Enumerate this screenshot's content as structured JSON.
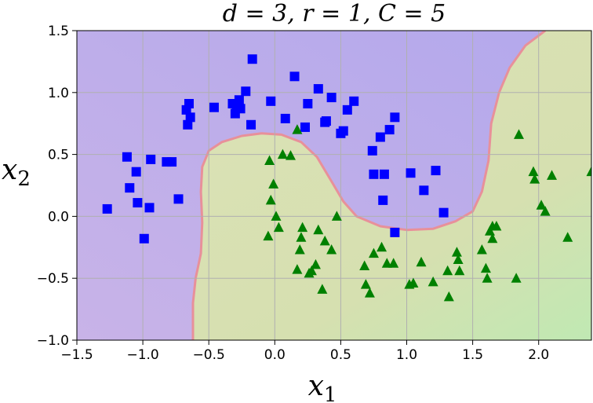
{
  "chart_data": {
    "type": "scatter",
    "title": "d = 3, r = 1, C = 5",
    "xlabel": "x",
    "xlabel_sub": "1",
    "ylabel": "x",
    "ylabel_sub": "2",
    "xlim": [
      -1.5,
      2.4
    ],
    "ylim": [
      -1.0,
      1.5
    ],
    "xticks": [
      "−1.5",
      "−1.0",
      "−0.5",
      "0.0",
      "0.5",
      "1.0",
      "1.5",
      "2.0"
    ],
    "yticks": [
      "−1.0",
      "−0.5",
      "0.0",
      "0.5",
      "1.0",
      "1.5"
    ],
    "grid": true,
    "colors": {
      "class0": "#0000ff",
      "class1": "#008000",
      "region0": "#c8b3e8",
      "region1": "#d6e0b0",
      "boundary": "#e8909a"
    },
    "decision_boundary": [
      [
        -0.62,
        -1.0
      ],
      [
        -0.62,
        -0.7
      ],
      [
        -0.6,
        -0.5
      ],
      [
        -0.56,
        -0.3
      ],
      [
        -0.55,
        -0.05
      ],
      [
        -0.56,
        0.2
      ],
      [
        -0.55,
        0.4
      ],
      [
        -0.5,
        0.53
      ],
      [
        -0.4,
        0.6
      ],
      [
        -0.25,
        0.65
      ],
      [
        -0.1,
        0.67
      ],
      [
        0.05,
        0.66
      ],
      [
        0.2,
        0.6
      ],
      [
        0.32,
        0.48
      ],
      [
        0.42,
        0.3
      ],
      [
        0.52,
        0.12
      ],
      [
        0.62,
        0.0
      ],
      [
        0.8,
        -0.08
      ],
      [
        1.0,
        -0.11
      ],
      [
        1.2,
        -0.1
      ],
      [
        1.37,
        -0.04
      ],
      [
        1.5,
        0.04
      ],
      [
        1.57,
        0.2
      ],
      [
        1.62,
        0.45
      ],
      [
        1.64,
        0.75
      ],
      [
        1.7,
        1.0
      ],
      [
        1.78,
        1.2
      ],
      [
        1.9,
        1.38
      ],
      [
        2.05,
        1.5
      ]
    ],
    "series": [
      {
        "marker": "square",
        "x": [
          -1.27,
          -1.12,
          -1.1,
          -1.05,
          -1.04,
          -0.99,
          -0.95,
          -0.94,
          -0.82,
          -0.78,
          -0.73,
          -0.67,
          -0.66,
          -0.65,
          -0.64,
          -0.46,
          -0.32,
          -0.3,
          -0.29,
          -0.27,
          -0.26,
          -0.22,
          -0.18,
          -0.17,
          -0.03,
          0.08,
          0.15,
          0.23,
          0.25,
          0.33,
          0.38,
          0.39,
          0.43,
          0.5,
          0.52,
          0.55,
          0.6,
          0.74,
          0.75,
          0.8,
          0.82,
          0.83,
          0.87,
          0.91,
          1.03,
          1.13,
          1.22,
          1.28,
          0.91
        ],
        "y": [
          0.06,
          0.48,
          0.23,
          0.36,
          0.11,
          -0.18,
          0.07,
          0.46,
          0.44,
          0.44,
          0.14,
          0.86,
          0.74,
          0.91,
          0.8,
          0.88,
          0.91,
          0.83,
          0.88,
          0.94,
          0.87,
          1.01,
          0.74,
          1.27,
          0.93,
          0.79,
          1.13,
          0.72,
          0.91,
          1.03,
          0.76,
          0.77,
          0.96,
          0.67,
          0.69,
          0.86,
          0.93,
          0.53,
          0.34,
          0.64,
          0.13,
          0.34,
          0.7,
          0.8,
          0.35,
          0.21,
          0.37,
          0.03,
          -0.13
        ]
      },
      {
        "marker": "triangle",
        "x": [
          -0.04,
          -0.03,
          -0.01,
          0.01,
          -0.05,
          0.03,
          0.06,
          0.12,
          0.17,
          0.2,
          0.17,
          0.19,
          0.21,
          0.28,
          0.26,
          0.31,
          0.33,
          0.36,
          0.38,
          0.43,
          0.47,
          0.68,
          0.69,
          0.72,
          0.75,
          0.81,
          0.85,
          0.9,
          1.02,
          1.05,
          1.11,
          1.2,
          1.31,
          1.32,
          1.38,
          1.39,
          1.4,
          1.57,
          1.6,
          1.61,
          1.63,
          1.65,
          1.65,
          1.68,
          1.83,
          1.85,
          1.96,
          1.97,
          2.02,
          2.05,
          2.1,
          2.22,
          2.4
        ],
        "y": [
          0.45,
          0.13,
          0.26,
          0.0,
          -0.16,
          -0.09,
          0.5,
          0.49,
          0.7,
          -0.17,
          -0.43,
          -0.27,
          -0.09,
          -0.44,
          -0.46,
          -0.39,
          -0.11,
          -0.59,
          -0.2,
          -0.27,
          0.0,
          -0.4,
          -0.55,
          -0.62,
          -0.3,
          -0.25,
          -0.38,
          -0.38,
          -0.55,
          -0.54,
          -0.37,
          -0.53,
          -0.44,
          -0.65,
          -0.29,
          -0.35,
          -0.44,
          -0.27,
          -0.42,
          -0.5,
          -0.12,
          -0.08,
          -0.18,
          -0.08,
          -0.5,
          0.66,
          0.36,
          0.3,
          0.09,
          0.04,
          0.33,
          -0.17,
          0.36
        ]
      }
    ]
  }
}
